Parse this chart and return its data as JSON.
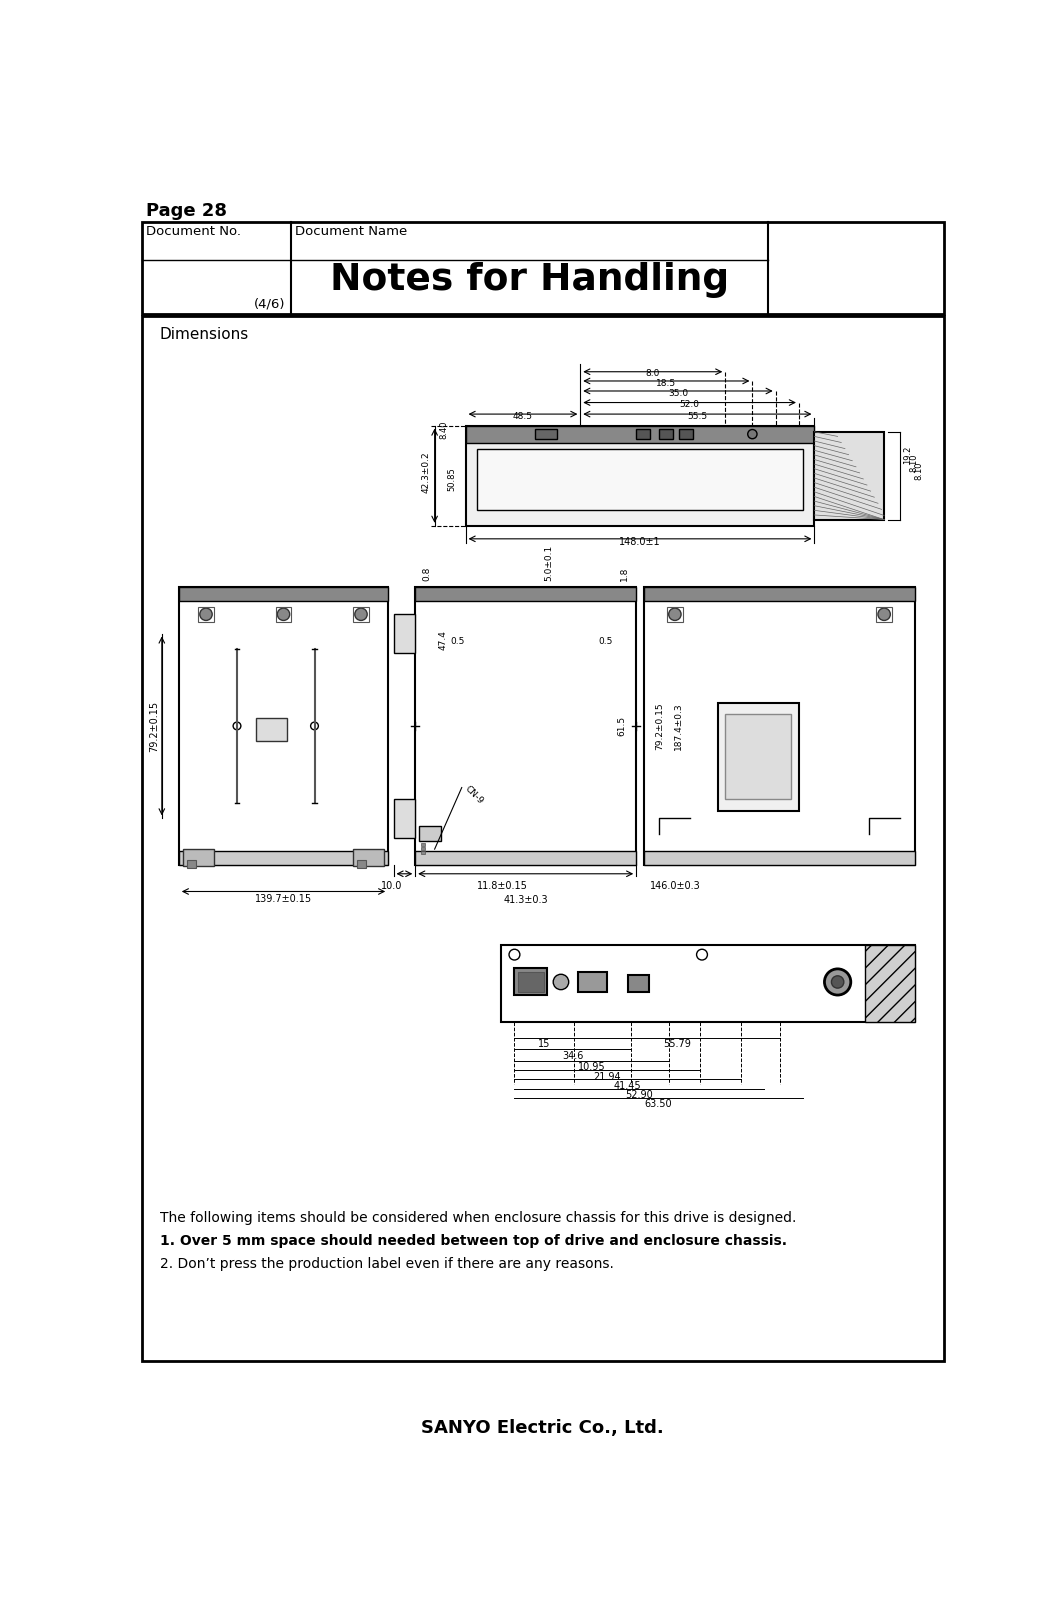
{
  "page_label": "Page 28",
  "doc_no_label": "Document No.",
  "doc_name_label": "Document Name",
  "title": "Notes for Handling",
  "subtitle": "(4/6)",
  "section_label": "Dimensions",
  "footer_company": "SANYO Electric Co., Ltd.",
  "note_lines": [
    "The following items should be considered when enclosure chassis for this drive is designed.",
    "1. Over 5 mm space should needed between top of drive and enclosure chassis.",
    "2. Don’t press the production label even if there are any reasons."
  ],
  "bg_color": "#ffffff",
  "border_color": "#000000",
  "text_color": "#000000"
}
